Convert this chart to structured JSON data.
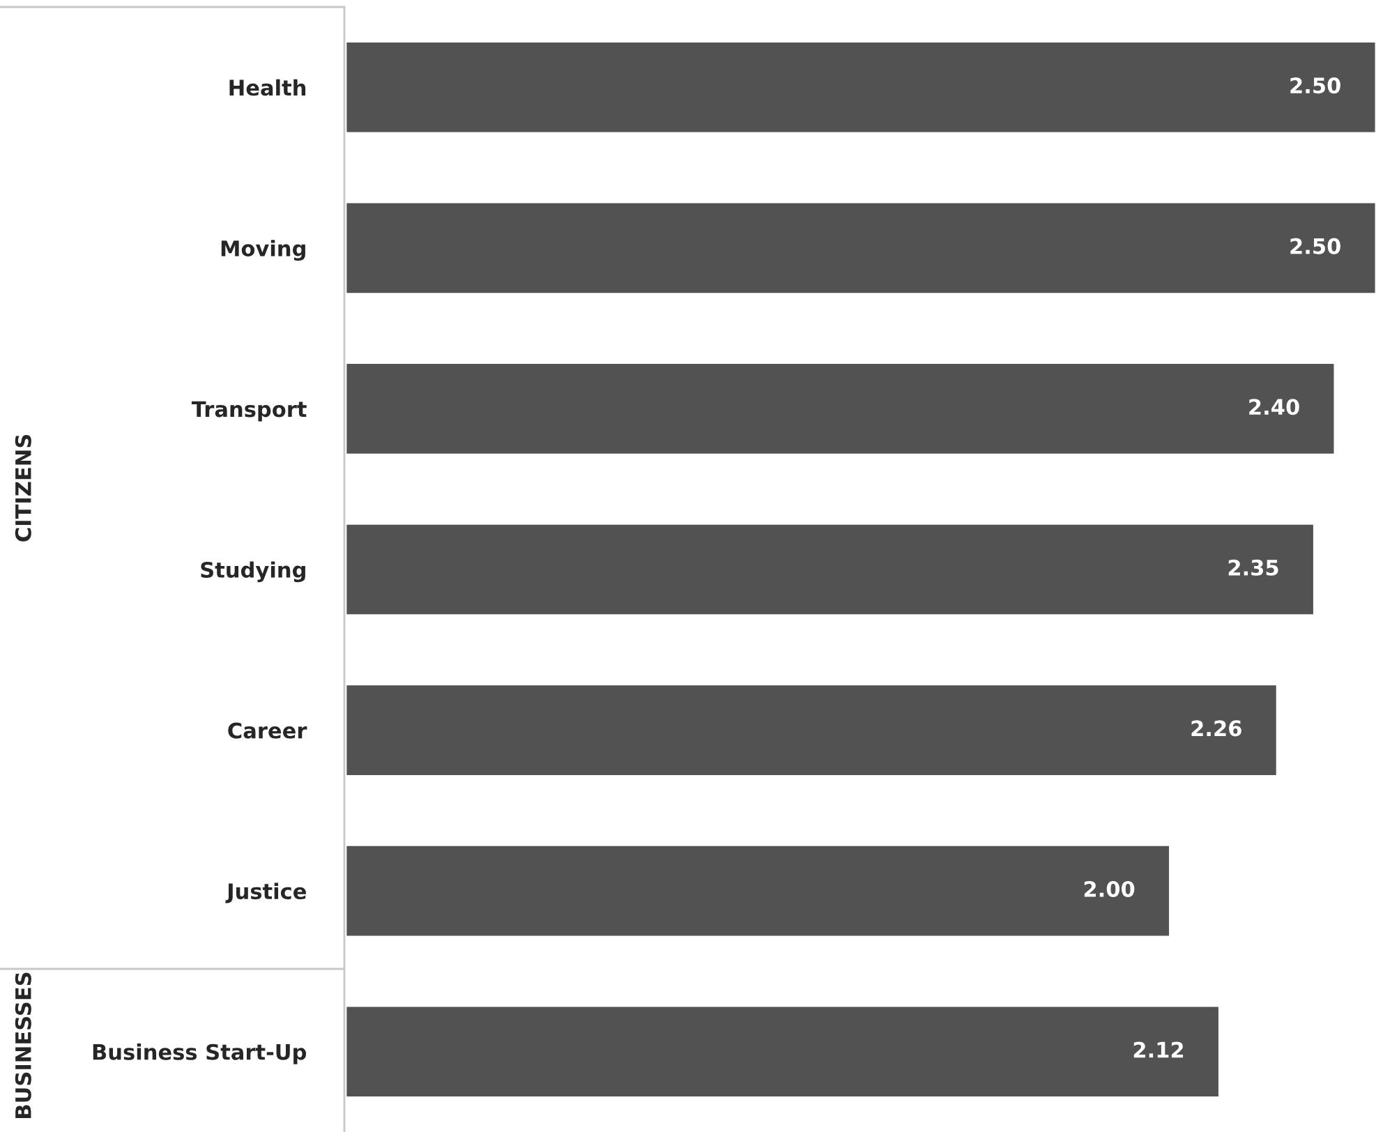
{
  "chart_data": {
    "type": "bar",
    "orientation": "horizontal",
    "categories": [
      "Health",
      "Moving",
      "Transport",
      "Studying",
      "Career",
      "Justice",
      "Business Start-Up"
    ],
    "values": [
      2.5,
      2.5,
      2.4,
      2.35,
      2.26,
      2.0,
      2.12
    ],
    "value_labels": [
      "2.50",
      "2.50",
      "2.40",
      "2.35",
      "2.26",
      "2.00",
      "2.12"
    ],
    "color": "#525252",
    "annotations": [
      "CITIZENS",
      "BUSINESSES"
    ],
    "grid": false,
    "legend": false
  }
}
